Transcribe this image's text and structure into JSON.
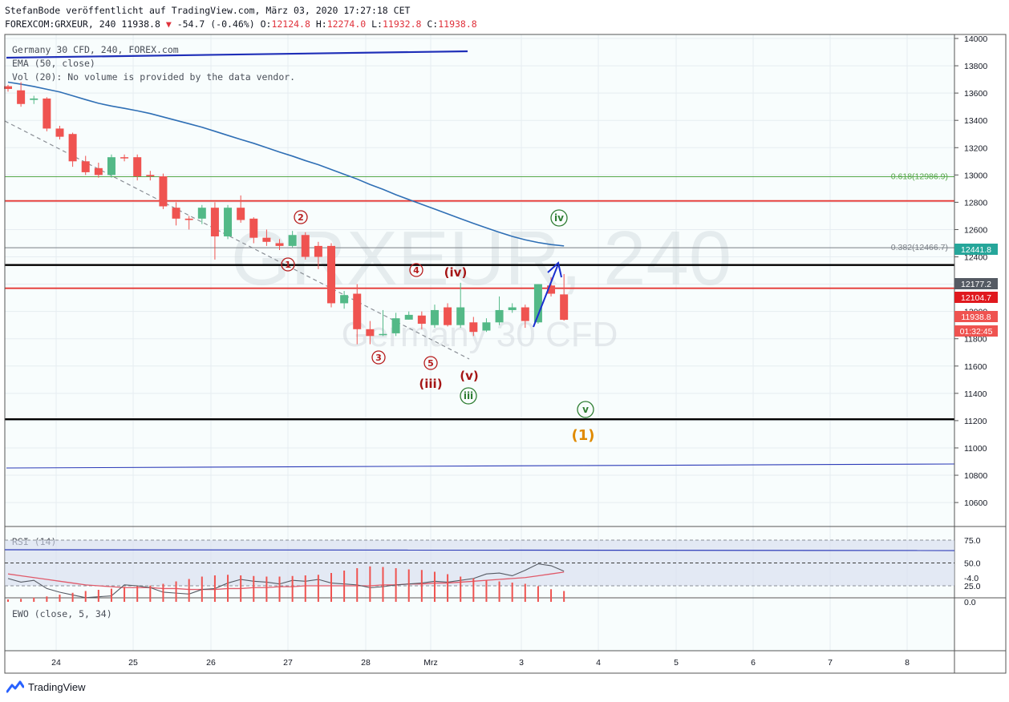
{
  "header": {
    "publish_line": "StefanBode veröffentlicht auf TradingView.com, März 03, 2020 17:27:18 CET",
    "symbol_line": "FOREXCOM:GRXEUR, 240",
    "last_price": "11938.8",
    "change": "-54.7 (-0.46%)",
    "o_label": "O:",
    "o_value": "12124.8",
    "h_label": "H:",
    "h_value": "12274.0",
    "l_label": "L:",
    "l_value": "11932.8",
    "c_label": "C:",
    "c_value": "11938.8"
  },
  "legend": {
    "title": "Germany 30 CFD, 240, FOREX.com",
    "ema": "EMA (50, close)",
    "vol": "Vol (20): No volume is provided by the data vendor.",
    "rsi": "RSI (14)",
    "ewo": "EWO (close, 5, 34)"
  },
  "watermark": {
    "symbol": "GRXEUR, 240",
    "name": "Germany 30 CFD"
  },
  "brand": {
    "name": "TradingView"
  },
  "colors": {
    "up": "#26a69a",
    "up_fill": "#53b987",
    "down": "#ef5350",
    "ema": "#2f6fb5",
    "grid": "#e8eef2"
  },
  "chart_data": {
    "type": "candlestick",
    "y_axis": {
      "min": 10400,
      "max": 14000,
      "ticks": [
        14000,
        13800,
        13600,
        13400,
        13200,
        13000,
        12800,
        12600,
        12400,
        12200,
        12000,
        11800,
        11600,
        11400,
        11200,
        11000,
        10800,
        10600
      ]
    },
    "x_ticks": [
      "24",
      "25",
      "26",
      "27",
      "28",
      "Mrz",
      "3",
      "4",
      "5",
      "6",
      "7",
      "8"
    ],
    "price_labels": [
      {
        "text": "12441.8",
        "color": "#26a69a"
      },
      {
        "text": "12177.2",
        "color": "#555a63"
      },
      {
        "text": "12104.7",
        "color": "#e0191e"
      },
      {
        "text": "11938.8",
        "color": "#ef5350"
      },
      {
        "text": "01:32:45",
        "color": "#ef5350"
      }
    ],
    "fib_levels": [
      {
        "label": "0.618(12986.9)",
        "value": 12986.9
      },
      {
        "label": "0.382(12466.7)",
        "value": 12466.7
      }
    ],
    "horizontal_lines": [
      {
        "value": 12810,
        "color": "#e53935"
      },
      {
        "value": 12340,
        "color": "#000000"
      },
      {
        "value": 12170,
        "color": "#e53935"
      },
      {
        "value": 11210,
        "color": "#000000"
      }
    ],
    "wave_labels": [
      {
        "text": "①"
      },
      {
        "text": "②"
      },
      {
        "text": "③"
      },
      {
        "text": "④"
      },
      {
        "text": "⑤"
      },
      {
        "text": "(iii)"
      },
      {
        "text": "(iv)"
      },
      {
        "text": "(v)"
      },
      {
        "text": "iii"
      },
      {
        "text": "iv"
      },
      {
        "text": "v"
      },
      {
        "text": "(1)"
      }
    ],
    "candles": [
      [
        13650,
        13660,
        13610,
        13630
      ],
      [
        13620,
        13680,
        13500,
        13520
      ],
      [
        13550,
        13580,
        13520,
        13560
      ],
      [
        13560,
        13570,
        13320,
        13340
      ],
      [
        13340,
        13360,
        13260,
        13280
      ],
      [
        13300,
        13310,
        13060,
        13100
      ],
      [
        13100,
        13140,
        13000,
        13020
      ],
      [
        13050,
        13090,
        12980,
        13000
      ],
      [
        13000,
        13150,
        12980,
        13130
      ],
      [
        13130,
        13150,
        13100,
        13125
      ],
      [
        13130,
        13150,
        12960,
        12990
      ],
      [
        13000,
        13030,
        12960,
        12990
      ],
      [
        12990,
        13010,
        12750,
        12770
      ],
      [
        12760,
        12800,
        12630,
        12680
      ],
      [
        12680,
        12700,
        12600,
        12670
      ],
      [
        12680,
        12780,
        12640,
        12760
      ],
      [
        12760,
        12800,
        12380,
        12550
      ],
      [
        12550,
        12780,
        12530,
        12760
      ],
      [
        12760,
        12850,
        12650,
        12670
      ],
      [
        12680,
        12690,
        12500,
        12540
      ],
      [
        12540,
        12600,
        12480,
        12510
      ],
      [
        12500,
        12530,
        12450,
        12480
      ],
      [
        12480,
        12590,
        12470,
        12560
      ],
      [
        12560,
        12580,
        12380,
        12400
      ],
      [
        12480,
        12510,
        12310,
        12400
      ],
      [
        12480,
        12500,
        12030,
        12060
      ],
      [
        12060,
        12150,
        12020,
        12120
      ],
      [
        12130,
        12200,
        11760,
        11870
      ],
      [
        11870,
        11930,
        11760,
        11820
      ],
      [
        11830,
        12010,
        11820,
        11835
      ],
      [
        11840,
        11990,
        11820,
        11950
      ],
      [
        11940,
        12000,
        11940,
        11975
      ],
      [
        11970,
        12000,
        11870,
        11910
      ],
      [
        11900,
        12050,
        11880,
        12010
      ],
      [
        12030,
        12060,
        11890,
        11900
      ],
      [
        11900,
        12210,
        11880,
        12030
      ],
      [
        11920,
        11960,
        11820,
        11850
      ],
      [
        11860,
        11950,
        11850,
        11920
      ],
      [
        11920,
        12110,
        11900,
        12010
      ],
      [
        12010,
        12060,
        11990,
        12030
      ],
      [
        12030,
        12050,
        11880,
        11930
      ],
      [
        11920,
        12200,
        11910,
        12200
      ],
      [
        12190,
        12250,
        12110,
        12130
      ],
      [
        12124.8,
        12274.0,
        11932.8,
        11938.8
      ]
    ],
    "ema_values": [
      13680,
      13665,
      13648,
      13628,
      13608,
      13580,
      13552,
      13525,
      13505,
      13488,
      13470,
      13450,
      13425,
      13400,
      13375,
      13350,
      13320,
      13290,
      13260,
      13232,
      13200,
      13168,
      13138,
      13105,
      13075,
      13040,
      13005,
      12970,
      12930,
      12895,
      12855,
      12820,
      12785,
      12750,
      12715,
      12680,
      12645,
      12612,
      12580,
      12550,
      12525,
      12505,
      12490,
      12480
    ],
    "rsi_values": [
      33,
      29,
      31,
      22,
      18,
      15,
      12,
      13,
      14,
      26,
      25,
      23,
      18,
      17,
      16,
      21,
      22,
      28,
      32,
      30,
      29,
      27,
      31,
      30,
      32,
      28,
      27,
      26,
      23,
      24,
      26,
      27,
      28,
      30,
      29,
      31,
      33,
      38,
      39,
      36,
      42,
      49,
      47,
      41
    ],
    "rsi_signal_values": [
      38,
      36,
      34,
      32,
      30,
      28,
      26,
      25,
      24,
      23,
      23,
      23,
      22,
      22,
      21,
      21,
      21,
      22,
      22,
      23,
      23,
      24,
      24,
      25,
      25,
      25,
      25,
      25,
      25,
      26,
      26,
      27,
      27,
      28,
      28,
      29,
      30,
      31,
      32,
      33,
      34,
      36,
      38,
      40
    ],
    "rsi_levels": [
      75,
      50,
      25
    ],
    "ewo_values": [
      -0.4,
      -0.5,
      -0.7,
      -0.9,
      -1.2,
      -1.5,
      -1.8,
      -2.0,
      -2.2,
      -2.5,
      -2.6,
      -2.7,
      -3.0,
      -3.4,
      -3.8,
      -4.2,
      -4.4,
      -4.5,
      -4.4,
      -4.3,
      -4.2,
      -4.2,
      -4.3,
      -4.4,
      -4.5,
      -4.8,
      -5.2,
      -5.6,
      -5.9,
      -5.8,
      -5.6,
      -5.4,
      -5.3,
      -5.0,
      -4.6,
      -4.2,
      -3.9,
      -3.6,
      -3.4,
      -3.2,
      -3.0,
      -2.6,
      -2.1,
      -1.8
    ],
    "ewo_ticks": [
      0.0,
      -4.0
    ],
    "rsi_ticks": [
      75.0,
      50.0,
      25.0
    ]
  }
}
